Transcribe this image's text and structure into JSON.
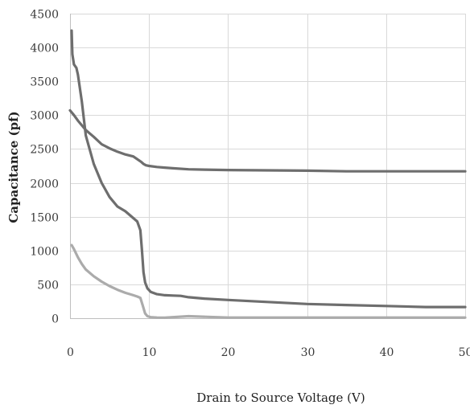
{
  "chart_data": {
    "type": "line",
    "title": "",
    "xlabel": "Drain to Source Voltage (V)",
    "ylabel": "Capacitance (pf)",
    "xlim": [
      0,
      50
    ],
    "ylim": [
      0,
      4500
    ],
    "x_ticks": [
      "0",
      "10",
      "20",
      "30",
      "40",
      "50"
    ],
    "y_ticks": [
      "0",
      "500",
      "1000",
      "1500",
      "2000",
      "2500",
      "3000",
      "3500",
      "4000",
      "4500"
    ],
    "grid": true,
    "legend": "none",
    "series": [
      {
        "color": "#6e6e6e",
        "width": 3.2,
        "x": [
          0,
          0.5,
          1,
          1.5,
          2,
          3,
          4,
          5,
          6,
          7,
          8,
          8.5,
          9,
          9.3,
          9.6,
          10,
          11,
          12,
          13,
          15,
          17,
          20,
          25,
          30,
          35,
          40,
          45,
          50
        ],
        "y": [
          3070,
          3000,
          2920,
          2850,
          2780,
          2680,
          2570,
          2510,
          2460,
          2420,
          2390,
          2350,
          2310,
          2280,
          2260,
          2250,
          2235,
          2225,
          2215,
          2200,
          2195,
          2190,
          2185,
          2180,
          2170,
          2170,
          2170,
          2170
        ]
      },
      {
        "color": "#6e6e6e",
        "width": 3.2,
        "x": [
          0.2,
          0.3,
          0.5,
          0.8,
          1,
          1.5,
          2,
          3,
          4,
          5,
          6,
          7,
          8,
          8.5,
          8.9,
          9.1,
          9.3,
          9.5,
          9.8,
          10.2,
          11,
          12,
          13,
          14,
          15,
          17,
          20,
          25,
          30,
          35,
          40,
          45,
          50
        ],
        "y": [
          4250,
          3900,
          3750,
          3700,
          3600,
          3200,
          2700,
          2280,
          2000,
          1790,
          1650,
          1580,
          1480,
          1430,
          1300,
          1000,
          680,
          530,
          440,
          390,
          355,
          340,
          335,
          330,
          310,
          290,
          270,
          240,
          210,
          195,
          180,
          165,
          165
        ]
      },
      {
        "color": "#ababab",
        "width": 3.2,
        "x": [
          0.2,
          0.5,
          1,
          1.5,
          2,
          3,
          4,
          5,
          6,
          7,
          8,
          8.5,
          8.9,
          9.2,
          9.5,
          9.8,
          10.2,
          11,
          12,
          15,
          20,
          30,
          40,
          50
        ],
        "y": [
          1080,
          1020,
          900,
          800,
          720,
          620,
          540,
          475,
          420,
          375,
          340,
          320,
          300,
          190,
          70,
          30,
          15,
          10,
          8,
          30,
          10,
          10,
          10,
          10
        ]
      }
    ]
  }
}
